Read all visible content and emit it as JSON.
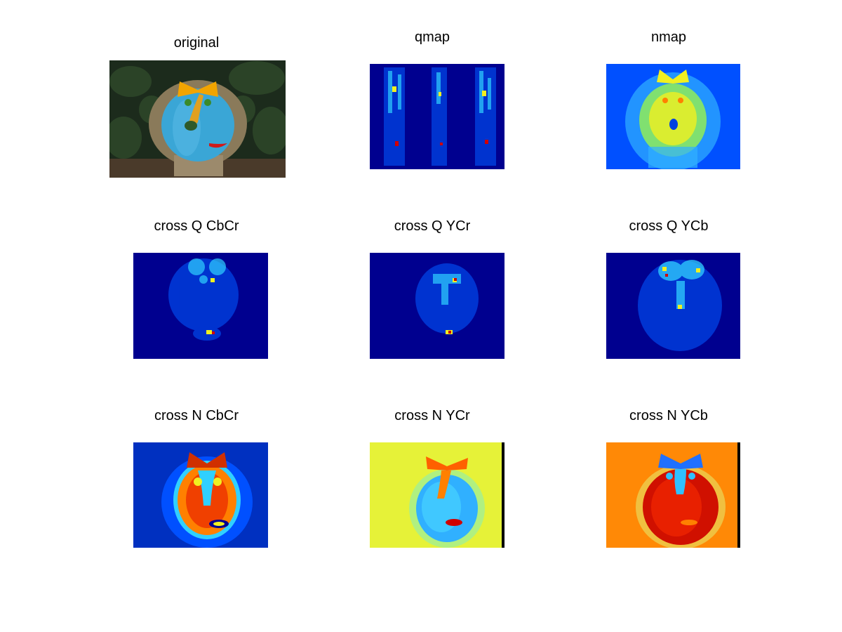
{
  "figure": {
    "panels": [
      {
        "id": "original",
        "title": "original",
        "kind": "photo"
      },
      {
        "id": "qmap",
        "title": "qmap",
        "kind": "heatmap",
        "colormap": "jet",
        "level": "low"
      },
      {
        "id": "nmap",
        "title": "nmap",
        "kind": "heatmap",
        "colormap": "jet",
        "level": "mid"
      },
      {
        "id": "cross-q-cbcr",
        "title": "cross Q CbCr",
        "kind": "heatmap",
        "colormap": "jet",
        "level": "low"
      },
      {
        "id": "cross-q-ycr",
        "title": "cross Q YCr",
        "kind": "heatmap",
        "colormap": "jet",
        "level": "low"
      },
      {
        "id": "cross-q-ycb",
        "title": "cross Q YCb",
        "kind": "heatmap",
        "colormap": "jet",
        "level": "low"
      },
      {
        "id": "cross-n-cbcr",
        "title": "cross N CbCr",
        "kind": "heatmap",
        "colormap": "jet",
        "level": "mixed"
      },
      {
        "id": "cross-n-ycr",
        "title": "cross N YCr",
        "kind": "heatmap",
        "colormap": "jet",
        "level": "mixed"
      },
      {
        "id": "cross-n-ycb",
        "title": "cross N YCb",
        "kind": "heatmap",
        "colormap": "jet",
        "level": "high"
      }
    ],
    "colors": {
      "jet_dark_blue": "#00008f",
      "jet_blue": "#0050ff",
      "jet_cyan": "#30d0ff",
      "jet_yellow": "#f0f020",
      "jet_orange": "#ff8000",
      "jet_red": "#d00000",
      "pumpkin_blue": "#3aa6d6",
      "foliage_green": "#1c2b1c",
      "bow_orange": "#f2a400"
    }
  }
}
